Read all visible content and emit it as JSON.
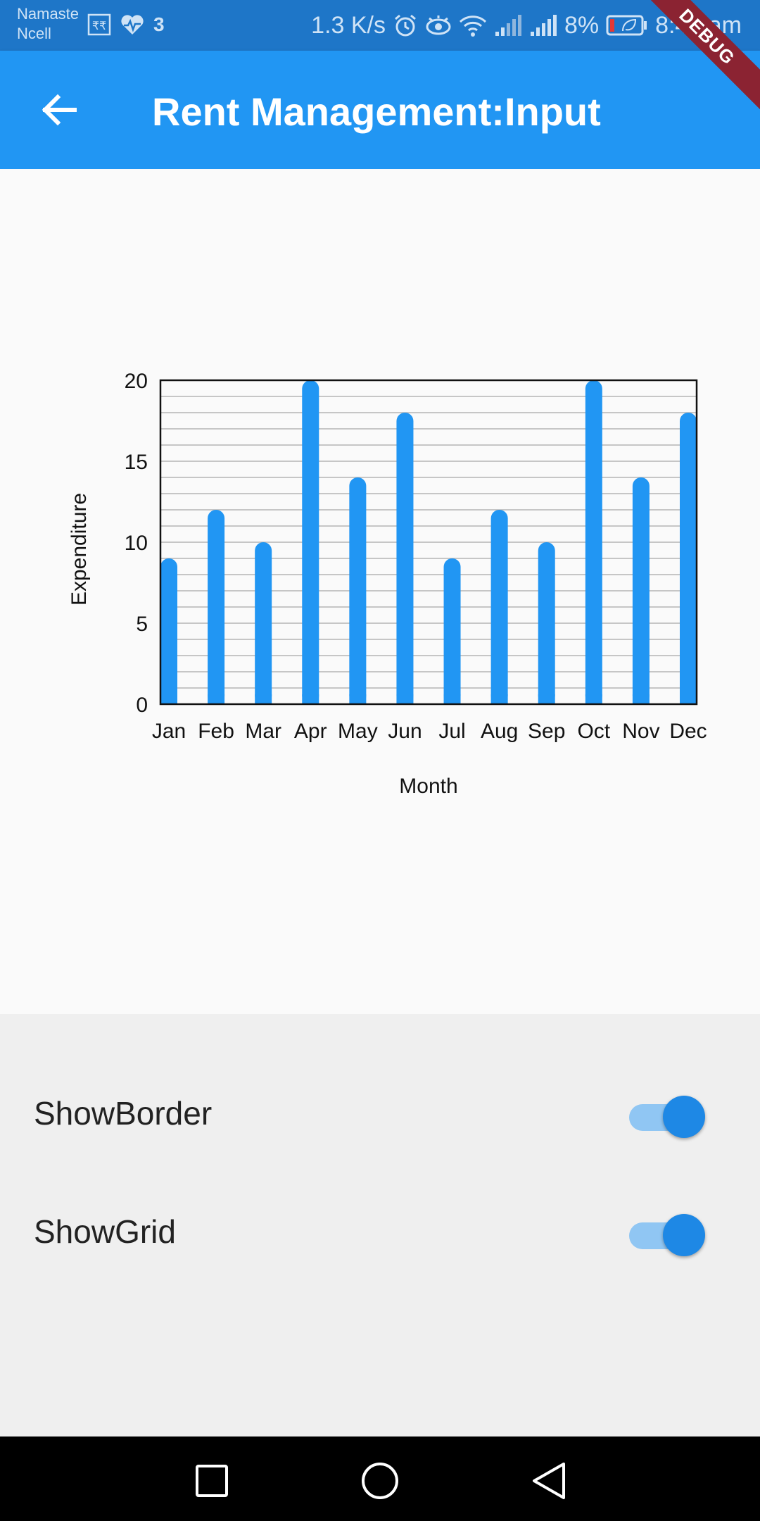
{
  "status_bar": {
    "carrier_line1": "Namaste",
    "carrier_line2": "Ncell",
    "notification_count": "3",
    "network_speed": "1.3 K/s",
    "battery_percent": "8%",
    "time": "8:40 am",
    "icons": [
      "rupee-icon",
      "heart-pulse-icon",
      "alarm-icon",
      "eye-icon",
      "wifi-icon",
      "signal-icon",
      "signal-icon",
      "battery-icon"
    ]
  },
  "app_bar": {
    "title": "Rent Management:Input",
    "back_icon": "arrow-back-icon",
    "debug_label": "DEBUG",
    "color": "#2196f3"
  },
  "chart_data": {
    "type": "bar",
    "categories": [
      "Jan",
      "Feb",
      "Mar",
      "Apr",
      "May",
      "Jun",
      "Jul",
      "Aug",
      "Sep",
      "Oct",
      "Nov",
      "Dec"
    ],
    "values": [
      9,
      12,
      10,
      20,
      14,
      18,
      9,
      12,
      10,
      20,
      14,
      18
    ],
    "xlabel": "Month",
    "ylabel": "Expenditure",
    "ylim": [
      0,
      20
    ],
    "yticks": [
      0,
      5,
      10,
      15,
      20
    ],
    "grid": true,
    "border": true,
    "bar_color": "#2196f3"
  },
  "settings": {
    "show_border": {
      "label": "ShowBorder",
      "enabled": true
    },
    "show_grid": {
      "label": "ShowGrid",
      "enabled": true
    }
  },
  "nav_bar": {
    "icons": [
      "recent-apps-icon",
      "home-icon",
      "back-icon"
    ]
  }
}
